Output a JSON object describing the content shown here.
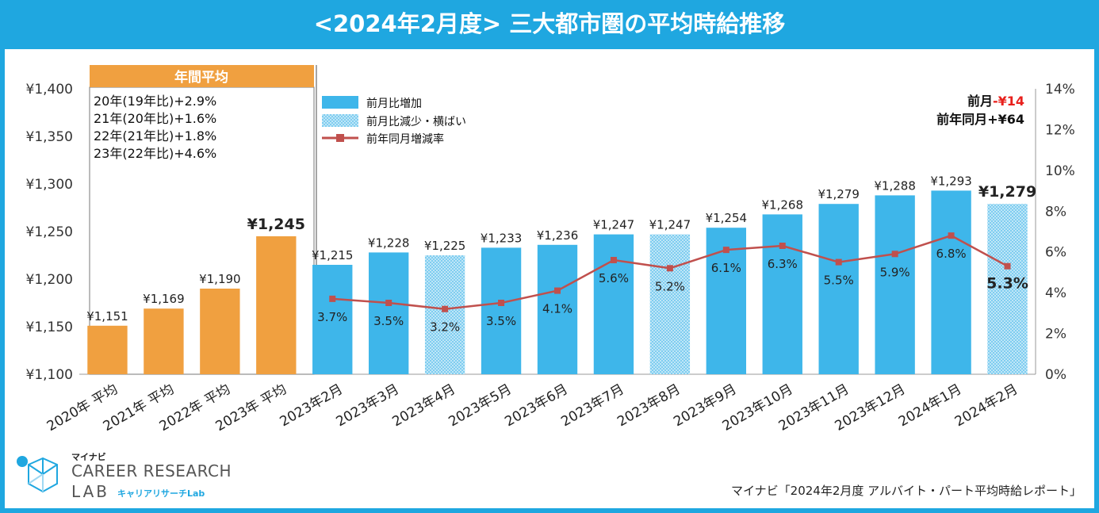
{
  "title": "<2024年2月度> 三大都市圏の平均時給推移",
  "annual_box": {
    "header": "年間平均",
    "lines": [
      "20年(19年比)+2.9%",
      "21年(20年比)+1.6%",
      "22年(21年比)+1.8%",
      "23年(22年比)+4.6%"
    ]
  },
  "legend": {
    "increase": "前月比増加",
    "decrease": "前月比減少・横ばい",
    "line": "前年同月増減率"
  },
  "summary": {
    "prev_month_label": "前月",
    "prev_month_value": "-¥14",
    "prev_year_label": "前年同月",
    "prev_year_value": "+¥64"
  },
  "credit": "マイナビ「2024年2月度 アルバイト・パート平均時給レポート」",
  "logo": {
    "small": "マイナビ",
    "line1": "CAREER RESEARCH",
    "line2": "LAB",
    "sub": "キャリアリサーチLab"
  },
  "colors": {
    "annual": "#f0a040",
    "increase": "#3eb6ea",
    "decrease": "#a9dcf4",
    "line": "#c0504d",
    "title_bg": "#1fa7e0",
    "summary_red": "#e8201c"
  },
  "chart_data": {
    "type": "bar",
    "categories": [
      "2020年 平均",
      "2021年 平均",
      "2022年 平均",
      "2023年 平均",
      "2023年2月",
      "2023年3月",
      "2023年4月",
      "2023年5月",
      "2023年6月",
      "2023年7月",
      "2023年8月",
      "2023年9月",
      "2023年10月",
      "2023年11月",
      "2023年12月",
      "2024年1月",
      "2024年2月"
    ],
    "kinds": [
      "annual",
      "annual",
      "annual",
      "annual",
      "increase",
      "increase",
      "decrease",
      "increase",
      "increase",
      "increase",
      "decrease",
      "increase",
      "increase",
      "increase",
      "increase",
      "increase",
      "decrease"
    ],
    "values": [
      1151,
      1169,
      1190,
      1245,
      1215,
      1228,
      1225,
      1233,
      1236,
      1247,
      1247,
      1254,
      1268,
      1279,
      1288,
      1293,
      1279
    ],
    "value_labels": [
      "¥1,151",
      "¥1,169",
      "¥1,190",
      "¥1,245",
      "¥1,215",
      "¥1,228",
      "¥1,225",
      "¥1,233",
      "¥1,236",
      "¥1,247",
      "¥1,247",
      "¥1,254",
      "¥1,268",
      "¥1,279",
      "¥1,288",
      "¥1,293",
      "¥1,279"
    ],
    "bold_labels": [
      3,
      16
    ],
    "series_line": {
      "name": "前年同月増減率",
      "start_index": 4,
      "values": [
        3.7,
        3.5,
        3.2,
        3.5,
        4.1,
        5.6,
        5.2,
        6.1,
        6.3,
        5.5,
        5.9,
        6.8,
        5.3
      ],
      "labels": [
        "3.7%",
        "3.5%",
        "3.2%",
        "3.5%",
        "4.1%",
        "5.6%",
        "5.2%",
        "6.1%",
        "6.3%",
        "5.5%",
        "5.9%",
        "6.8%",
        "5.3%"
      ]
    },
    "ylim": [
      1100,
      1400
    ],
    "yticks": [
      1100,
      1150,
      1200,
      1250,
      1300,
      1350,
      1400
    ],
    "ytick_labels": [
      "¥1,100",
      "¥1,150",
      "¥1,200",
      "¥1,250",
      "¥1,300",
      "¥1,350",
      "¥1,400"
    ],
    "y2lim": [
      0,
      14
    ],
    "y2ticks": [
      0,
      2,
      4,
      6,
      8,
      10,
      12,
      14
    ],
    "y2tick_labels": [
      "0%",
      "2%",
      "4%",
      "6%",
      "8%",
      "10%",
      "12%",
      "14%"
    ]
  }
}
